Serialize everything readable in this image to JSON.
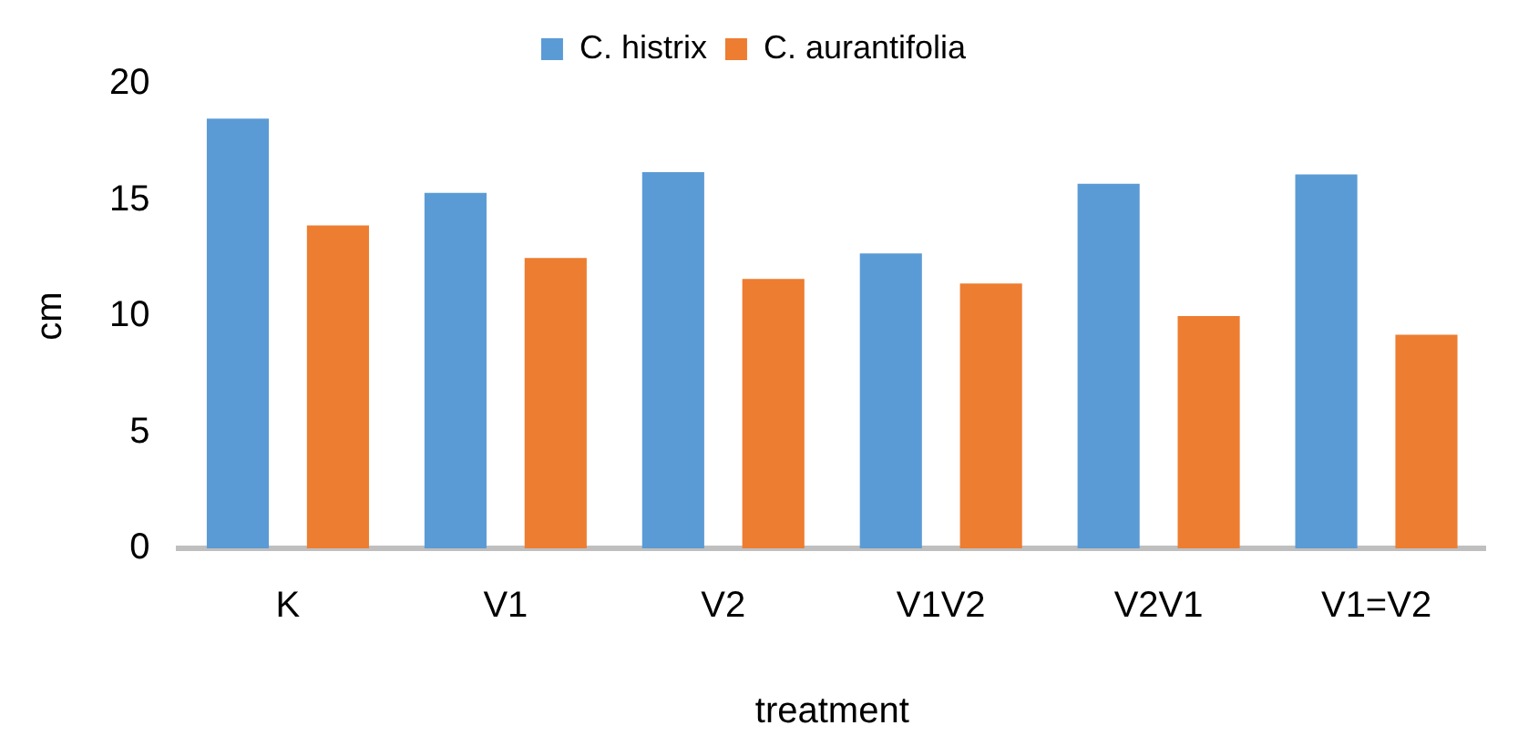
{
  "chart_data": {
    "type": "bar",
    "xlabel": "treatment",
    "ylabel": "cm",
    "categories": [
      "K",
      "V1",
      "V2",
      "V1V2",
      "V2V1",
      "V1=V2"
    ],
    "series": [
      {
        "name": "C. histrix",
        "color": "#5b9bd5",
        "values": [
          18.5,
          15.3,
          16.2,
          12.7,
          15.7,
          16.1
        ]
      },
      {
        "name": "C. aurantifolia",
        "color": "#ed7d31",
        "values": [
          13.9,
          12.5,
          11.6,
          11.4,
          10.0,
          9.2
        ]
      }
    ],
    "ylim": [
      0,
      20
    ],
    "yticks": [
      0,
      5,
      10,
      15,
      20
    ],
    "grid": false,
    "legend": "top"
  }
}
